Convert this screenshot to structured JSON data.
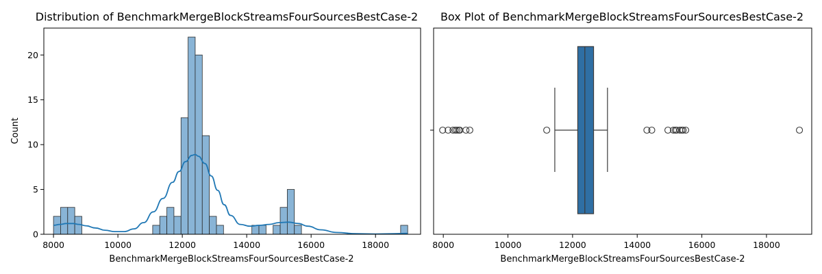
{
  "chart_data": [
    {
      "type": "histogram",
      "title": "Distribution of BenchmarkMergeBlockStreamsFourSourcesBestCase-2",
      "xlabel": "BenchmarkMergeBlockStreamsFourSourcesBestCase-2",
      "ylabel": "Count",
      "xlim": [
        7700,
        19400
      ],
      "ylim": [
        0,
        23
      ],
      "xticks": [
        8000,
        10000,
        12000,
        14000,
        16000,
        18000
      ],
      "yticks": [
        0,
        5,
        10,
        15,
        20
      ],
      "bins": [
        {
          "x0": 8000,
          "x1": 8220,
          "count": 2
        },
        {
          "x0": 8220,
          "x1": 8440,
          "count": 3
        },
        {
          "x0": 8440,
          "x1": 8660,
          "count": 3
        },
        {
          "x0": 8660,
          "x1": 8880,
          "count": 2
        },
        {
          "x0": 11080,
          "x1": 11300,
          "count": 1
        },
        {
          "x0": 11300,
          "x1": 11520,
          "count": 2
        },
        {
          "x0": 11520,
          "x1": 11740,
          "count": 3
        },
        {
          "x0": 11740,
          "x1": 11960,
          "count": 2
        },
        {
          "x0": 11960,
          "x1": 12180,
          "count": 13
        },
        {
          "x0": 12180,
          "x1": 12400,
          "count": 22
        },
        {
          "x0": 12400,
          "x1": 12620,
          "count": 20
        },
        {
          "x0": 12620,
          "x1": 12840,
          "count": 11
        },
        {
          "x0": 12840,
          "x1": 13060,
          "count": 2
        },
        {
          "x0": 13060,
          "x1": 13280,
          "count": 1
        },
        {
          "x0": 14160,
          "x1": 14380,
          "count": 1
        },
        {
          "x0": 14380,
          "x1": 14600,
          "count": 1
        },
        {
          "x0": 14820,
          "x1": 15040,
          "count": 1
        },
        {
          "x0": 15040,
          "x1": 15260,
          "count": 3
        },
        {
          "x0": 15260,
          "x1": 15480,
          "count": 5
        },
        {
          "x0": 15480,
          "x1": 15700,
          "count": 1
        },
        {
          "x0": 18780,
          "x1": 19000,
          "count": 1
        }
      ],
      "kde": {
        "x": [
          8000,
          8200,
          8400,
          8600,
          8800,
          9000,
          9300,
          9600,
          9900,
          10200,
          10500,
          10800,
          11100,
          11400,
          11700,
          11900,
          12100,
          12300,
          12400,
          12500,
          12700,
          12900,
          13100,
          13300,
          13500,
          13800,
          14100,
          14400,
          14700,
          15000,
          15300,
          15600,
          15900,
          16300,
          16800,
          17400,
          18000,
          18600,
          19000
        ],
        "y": [
          1.0,
          1.1,
          1.2,
          1.2,
          1.1,
          0.95,
          0.7,
          0.45,
          0.3,
          0.3,
          0.6,
          1.3,
          2.5,
          4.0,
          5.8,
          7.0,
          8.1,
          8.8,
          8.9,
          8.7,
          7.9,
          6.5,
          4.9,
          3.3,
          2.1,
          1.1,
          0.9,
          1.0,
          1.1,
          1.3,
          1.35,
          1.2,
          0.9,
          0.5,
          0.2,
          0.06,
          0.03,
          0.06,
          0.1
        ]
      },
      "colors": {
        "bar": "#89b4d6",
        "bar_edge": "#2a2a2a",
        "kde": "#1f77b4"
      }
    },
    {
      "type": "boxplot",
      "title": "Box Plot of BenchmarkMergeBlockStreamsFourSourcesBestCase-2",
      "xlabel": "BenchmarkMergeBlockStreamsFourSourcesBestCase-2",
      "xlim": [
        7700,
        19400
      ],
      "xticks": [
        8000,
        10000,
        12000,
        14000,
        16000,
        18000
      ],
      "whisker_low": 11450,
      "q1": 12160,
      "median": 12380,
      "q3": 12650,
      "whisker_high": 13080,
      "outliers": [
        7980,
        8150,
        8300,
        8370,
        8420,
        8480,
        8510,
        8700,
        8820,
        11200,
        14300,
        14450,
        14950,
        15120,
        15180,
        15220,
        15320,
        15380,
        15420,
        15500,
        19020
      ],
      "colors": {
        "box": "#2f6fa4",
        "edge": "#3a3a3a"
      }
    }
  ]
}
